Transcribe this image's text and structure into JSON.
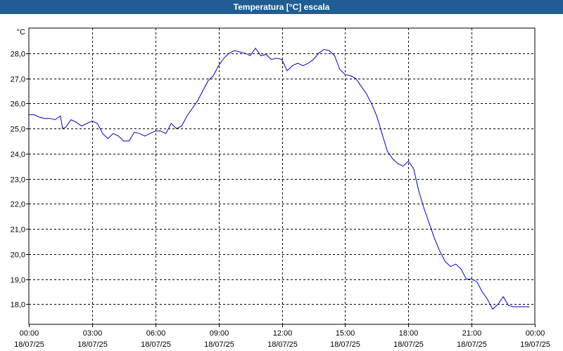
{
  "window": {
    "title": "Temperatura [°C] escala"
  },
  "chart_data": {
    "type": "line",
    "title": "Temperatura [°C] escala",
    "ylabel": "°C",
    "xlabel": "",
    "ylim": [
      17.2,
      29.0
    ],
    "xlim": [
      0,
      24
    ],
    "grid": true,
    "y_ticks": [
      "28,0",
      "27,0",
      "26,0",
      "25,0",
      "24,0",
      "23,0",
      "22,0",
      "21,0",
      "20,0",
      "19,0",
      "18,0"
    ],
    "y_tick_values": [
      28,
      27,
      26,
      25,
      24,
      23,
      22,
      21,
      20,
      19,
      18
    ],
    "x_ticks": [
      {
        "time": "00:00",
        "date": "18/07/25",
        "h": 0
      },
      {
        "time": "03:00",
        "date": "18/07/25",
        "h": 3
      },
      {
        "time": "06:00",
        "date": "18/07/25",
        "h": 6
      },
      {
        "time": "09:00",
        "date": "18/07/25",
        "h": 9
      },
      {
        "time": "12:00",
        "date": "18/07/25",
        "h": 12
      },
      {
        "time": "15:00",
        "date": "18/07/25",
        "h": 15
      },
      {
        "time": "18:00",
        "date": "18/07/25",
        "h": 18
      },
      {
        "time": "21:00",
        "date": "18/07/25",
        "h": 21
      },
      {
        "time": "00:00",
        "date": "19/07/25",
        "h": 24
      }
    ],
    "series": [
      {
        "color": "#0000c8",
        "x": [
          0,
          0.25,
          0.5,
          0.75,
          1.0,
          1.25,
          1.5,
          1.6,
          1.75,
          2.0,
          2.25,
          2.5,
          2.75,
          3.0,
          3.25,
          3.5,
          3.75,
          4.0,
          4.25,
          4.5,
          4.75,
          5.0,
          5.25,
          5.5,
          5.75,
          6.0,
          6.25,
          6.5,
          6.75,
          7.0,
          7.25,
          7.5,
          7.75,
          8.0,
          8.25,
          8.5,
          8.75,
          9.0,
          9.25,
          9.5,
          9.75,
          10.0,
          10.25,
          10.5,
          10.75,
          11.0,
          11.25,
          11.5,
          11.75,
          12.0,
          12.25,
          12.5,
          12.75,
          13.0,
          13.25,
          13.5,
          13.75,
          14.0,
          14.25,
          14.5,
          14.75,
          15.0,
          15.25,
          15.5,
          15.75,
          16.0,
          16.25,
          16.5,
          16.75,
          17.0,
          17.25,
          17.5,
          17.75,
          18.0,
          18.25,
          18.5,
          18.75,
          19.0,
          19.25,
          19.5,
          19.75,
          20.0,
          20.25,
          20.5,
          20.75,
          21.0,
          21.25,
          21.5,
          21.75,
          22.0,
          22.25,
          22.5,
          22.75,
          23.0,
          23.25,
          23.5,
          23.75
        ],
        "values": [
          25.55,
          25.55,
          25.45,
          25.4,
          25.4,
          25.35,
          25.5,
          25.0,
          25.05,
          25.35,
          25.25,
          25.1,
          25.2,
          25.3,
          25.2,
          24.8,
          24.6,
          24.8,
          24.7,
          24.5,
          24.5,
          24.85,
          24.8,
          24.7,
          24.8,
          24.9,
          24.9,
          24.8,
          25.2,
          25.0,
          25.1,
          25.5,
          25.8,
          26.1,
          26.5,
          26.9,
          27.1,
          27.5,
          27.8,
          28.0,
          28.1,
          28.05,
          28.0,
          27.9,
          28.2,
          27.9,
          27.95,
          27.75,
          27.8,
          27.75,
          27.3,
          27.5,
          27.6,
          27.5,
          27.6,
          27.75,
          28.0,
          28.15,
          28.1,
          27.9,
          27.35,
          27.15,
          27.1,
          27.0,
          26.7,
          26.4,
          26.0,
          25.5,
          24.8,
          24.1,
          23.8,
          23.6,
          23.5,
          23.7,
          23.4,
          22.5,
          21.8,
          21.2,
          20.6,
          20.1,
          19.7,
          19.5,
          19.6,
          19.4,
          19.0,
          19.0,
          18.9,
          18.5,
          18.2,
          17.8,
          18.0,
          18.3,
          17.95,
          17.9,
          17.9,
          17.9,
          17.9
        ]
      }
    ]
  }
}
